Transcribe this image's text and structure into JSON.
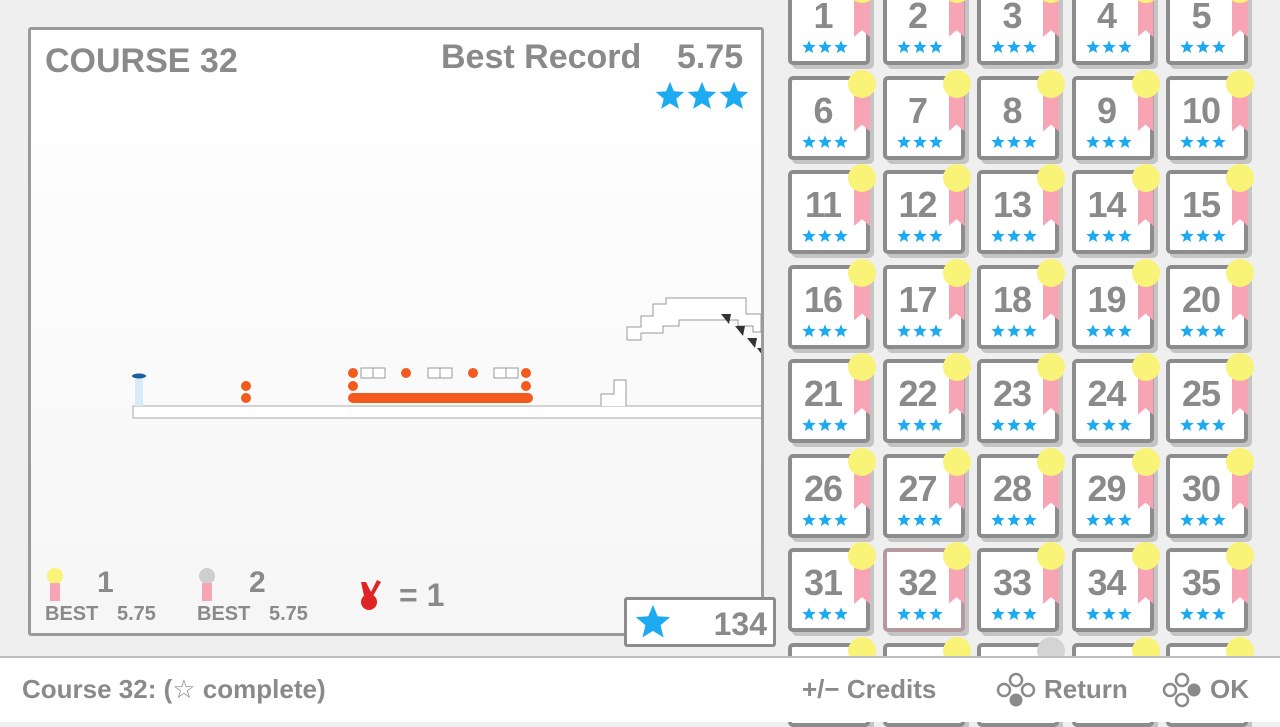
{
  "header": {
    "course": "COURSE 32",
    "best_label": "Best Record",
    "best_time": "5.75"
  },
  "legend": [
    {
      "rank": 1,
      "best_label": "BEST",
      "time": "5.75"
    },
    {
      "rank": 2,
      "best_label": "BEST",
      "time": "5.75"
    }
  ],
  "deaths": "= 1",
  "star_total": 134,
  "courses": [
    1,
    2,
    3,
    4,
    5,
    6,
    7,
    8,
    9,
    10,
    11,
    12,
    13,
    14,
    15,
    16,
    17,
    18,
    19,
    20,
    21,
    22,
    23,
    24,
    25,
    26,
    27,
    28,
    29,
    30,
    31,
    32,
    33,
    34,
    35
  ],
  "footer": {
    "status": "Course 32: (☆ complete)",
    "credits": "+/− Credits",
    "return": "Return",
    "ok": "OK"
  }
}
